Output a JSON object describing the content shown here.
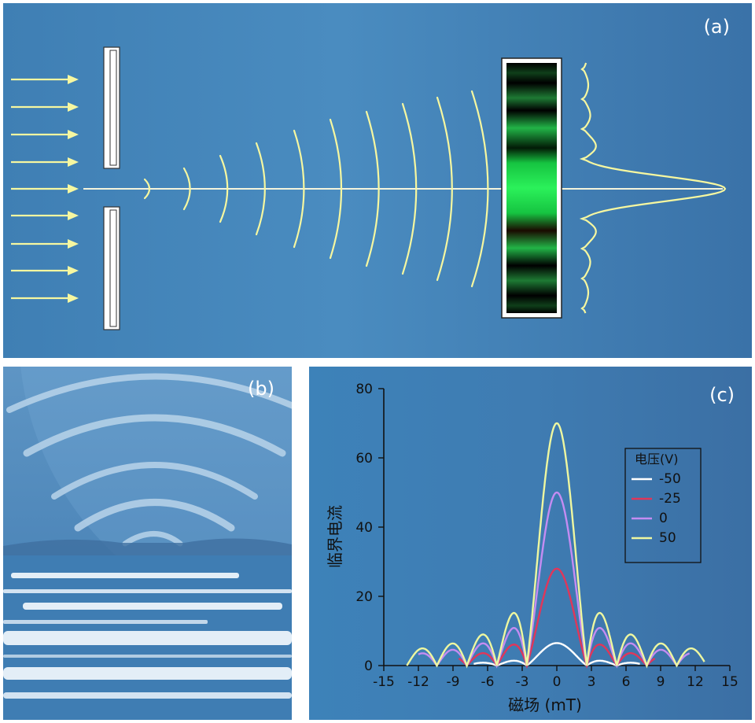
{
  "panels": {
    "a": {
      "label": "(a)"
    },
    "b": {
      "label": "(b)"
    },
    "c": {
      "label": "(c)"
    }
  },
  "colors": {
    "wave": "#f6f7a0",
    "axis_line": "#f4f4dc",
    "fringe_bright": "#22e052",
    "fringe_dark": "#000000",
    "panel_bg": "#4a8cc0"
  },
  "chart_data": {
    "type": "line",
    "xlabel": "磁场 (mT)",
    "ylabel": "临界电流",
    "xlim": [
      -15,
      15
    ],
    "ylim": [
      0,
      80
    ],
    "xticks": [
      "-15",
      "-12",
      "-9",
      "-6",
      "-3",
      "0",
      "3",
      "6",
      "9",
      "12",
      "15"
    ],
    "yticks": [
      "0",
      "20",
      "40",
      "60",
      "80"
    ],
    "legend_title": "电压(V)",
    "legend_position": "right",
    "period_mT": 2.6,
    "series": [
      {
        "name": "-50",
        "color": "#ffffff",
        "peak": 6.5,
        "x_range": [
          -7.2,
          7.2
        ]
      },
      {
        "name": "-25",
        "color": "#e0365a",
        "peak": 28,
        "x_range": [
          -8.5,
          8.5
        ]
      },
      {
        "name": "0",
        "color": "#c48cf2",
        "peak": 50,
        "x_range": [
          -12,
          11.5
        ]
      },
      {
        "name": "50",
        "color": "#eef7a0",
        "peak": 70,
        "x_range": [
          -13,
          12.8
        ]
      }
    ]
  }
}
